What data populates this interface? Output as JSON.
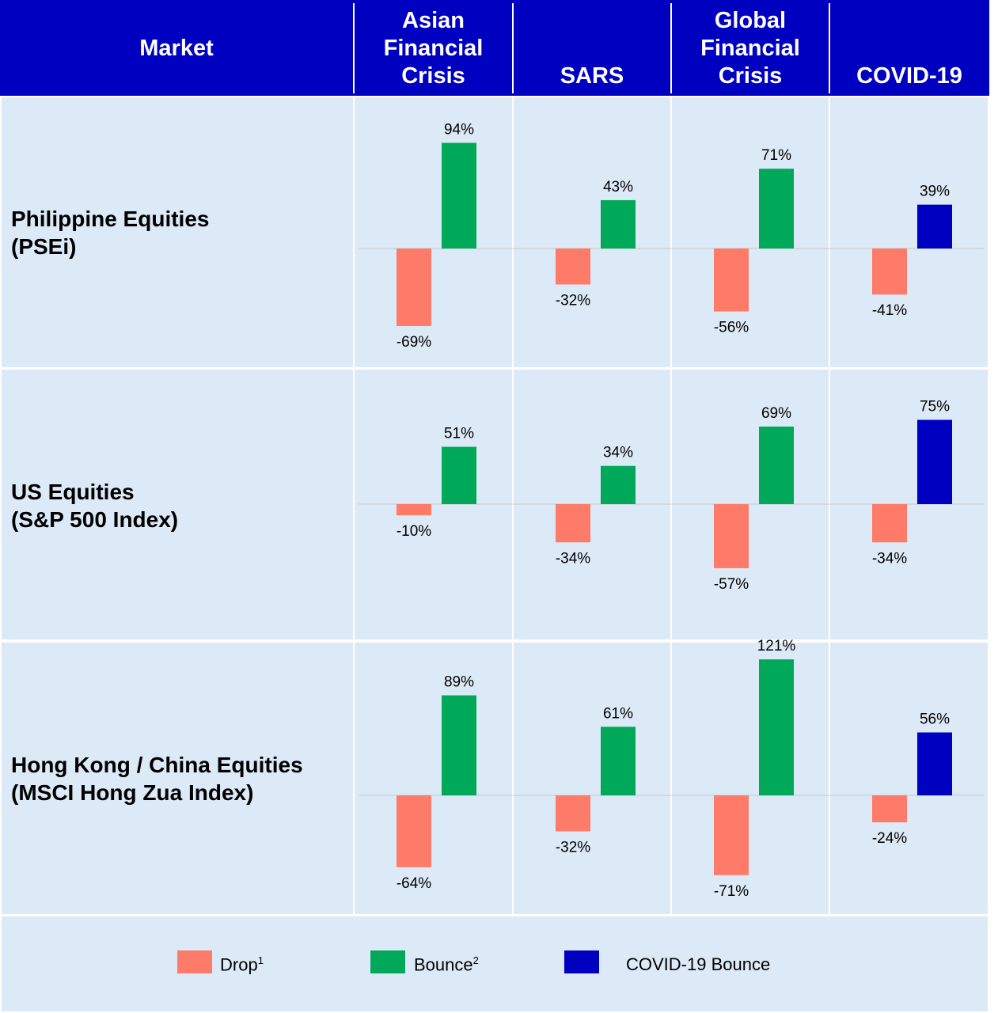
{
  "header": {
    "market_label": "Market",
    "columns": [
      {
        "lines": [
          "Asian",
          "Financial",
          "Crisis"
        ]
      },
      {
        "lines": [
          "SARS"
        ]
      },
      {
        "lines": [
          "Global",
          "Financial",
          "Crisis"
        ]
      },
      {
        "lines": [
          "COVID-19"
        ]
      }
    ]
  },
  "rows": [
    {
      "lines": [
        "Philippine Equities",
        "(PSEi)"
      ]
    },
    {
      "lines": [
        "US Equities",
        "(S&P 500 Index)"
      ]
    },
    {
      "lines": [
        "Hong Kong / China Equities",
        "(MSCI Hong Zua Index)"
      ]
    }
  ],
  "legend": {
    "drop": {
      "label": "Drop",
      "sup": "1"
    },
    "bounce": {
      "label": "Bounce",
      "sup": "2"
    },
    "covid": {
      "label": "COVID-19 Bounce"
    }
  },
  "colors": {
    "header_bg": "#0000c0",
    "cell_bg": "#dce9f6",
    "drop": "#fe7b6a",
    "bounce": "#00a859",
    "covid_bounce": "#0000c0"
  },
  "chart_data": {
    "type": "bar",
    "categories": [
      "Asian Financial Crisis",
      "SARS",
      "Global Financial Crisis",
      "COVID-19"
    ],
    "series_names": [
      "Drop",
      "Bounce",
      "COVID-19 Bounce"
    ],
    "panels": [
      {
        "market": "Philippine Equities (PSEi)",
        "drop": [
          -69,
          -32,
          -56,
          -41
        ],
        "bounce": [
          94,
          43,
          71,
          39
        ],
        "drop_labels": [
          "-69%",
          "-32%",
          "-56%",
          "-41%"
        ],
        "bounce_labels": [
          "94%",
          "43%",
          "71%",
          "39%"
        ]
      },
      {
        "market": "US Equities (S&P 500 Index)",
        "drop": [
          -10,
          -34,
          -57,
          -34
        ],
        "bounce": [
          51,
          34,
          69,
          75
        ],
        "drop_labels": [
          "-10%",
          "-34%",
          "-57%",
          "-34%"
        ],
        "bounce_labels": [
          "51%",
          "34%",
          "69%",
          "75%"
        ]
      },
      {
        "market": "Hong Kong / China Equities (MSCI Hong Zua Index)",
        "drop": [
          -64,
          -32,
          -71,
          -24
        ],
        "bounce": [
          89,
          61,
          121,
          56
        ],
        "drop_labels": [
          "-64%",
          "-32%",
          "-71%",
          "-24%"
        ],
        "bounce_labels": [
          "89%",
          "61%",
          "121%",
          "56%"
        ]
      }
    ]
  }
}
